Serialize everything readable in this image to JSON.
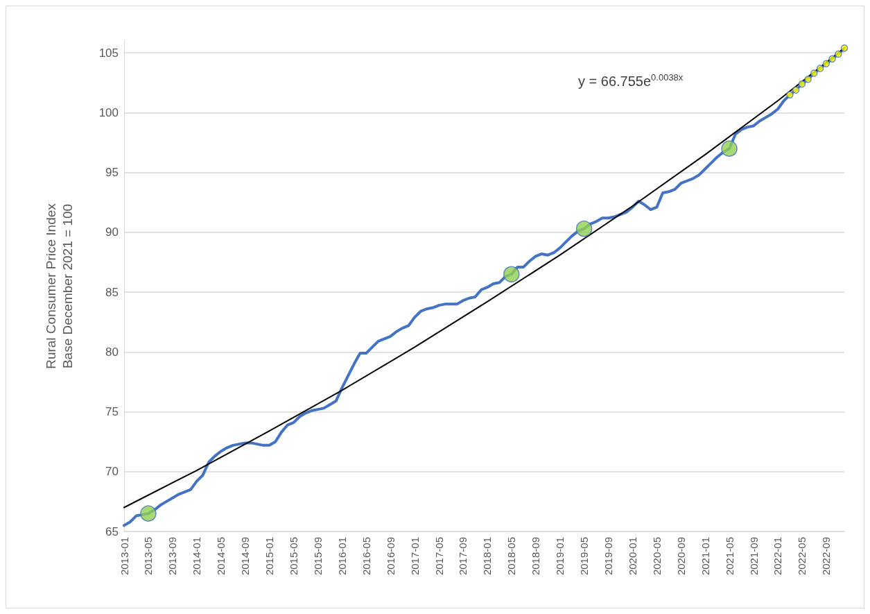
{
  "chart_data": {
    "type": "line",
    "ylabel": "Rural Consumer Price Index\nBase December 2021 = 100",
    "categories": [
      "2013-01",
      null,
      null,
      null,
      "2013-05",
      null,
      null,
      null,
      "2013-09",
      null,
      null,
      null,
      "2014-01",
      null,
      null,
      null,
      "2014-05",
      null,
      null,
      null,
      "2014-09",
      null,
      null,
      null,
      "2015-01",
      null,
      null,
      null,
      "2015-05",
      null,
      null,
      null,
      "2015-09",
      null,
      null,
      null,
      "2016-01",
      null,
      null,
      null,
      "2016-05",
      null,
      null,
      null,
      "2016-09",
      null,
      null,
      null,
      "2017-01",
      null,
      null,
      null,
      "2017-05",
      null,
      null,
      null,
      "2017-09",
      null,
      null,
      null,
      "2018-01",
      null,
      null,
      null,
      "2018-05",
      null,
      null,
      null,
      "2018-09",
      null,
      null,
      null,
      "2019-01",
      null,
      null,
      null,
      "2019-05",
      null,
      null,
      null,
      "2019-09",
      null,
      null,
      null,
      "2020-01",
      null,
      null,
      null,
      "2020-05",
      null,
      null,
      null,
      "2020-09",
      null,
      null,
      null,
      "2021-01",
      null,
      null,
      null,
      "2021-05",
      null,
      null,
      null,
      "2021-09",
      null,
      null,
      null,
      "2022-01",
      null,
      null,
      null,
      "2022-05",
      null,
      null,
      null,
      "2022-09",
      null,
      null,
      null
    ],
    "series": [
      {
        "color": "#4472c4",
        "marker": "none",
        "line_style": "solid",
        "values": [
          65.5,
          65.8,
          66.3,
          66.4,
          66.5,
          66.8,
          67.2,
          67.5,
          67.8,
          68.1,
          68.3,
          68.5,
          69.2,
          69.7,
          70.8,
          71.3,
          71.7,
          72.0,
          72.2,
          72.3,
          72.4,
          72.4,
          72.3,
          72.2,
          72.2,
          72.5,
          73.3,
          73.9,
          74.1,
          74.6,
          74.9,
          75.1,
          75.2,
          75.3,
          75.6,
          75.9,
          77.0,
          78.0,
          79.0,
          79.9,
          79.9,
          80.4,
          80.9,
          81.1,
          81.3,
          81.7,
          82.0,
          82.2,
          82.9,
          83.4,
          83.6,
          83.7,
          83.9,
          84.0,
          84.0,
          84.0,
          84.3,
          84.5,
          84.6,
          85.2,
          85.4,
          85.7,
          85.8,
          86.3,
          86.5,
          87.1,
          87.1,
          87.6,
          88.0,
          88.2,
          88.1,
          88.3,
          88.7,
          89.2,
          89.7,
          90.1,
          90.3,
          90.7,
          90.9,
          91.2,
          91.2,
          91.3,
          91.5,
          91.7,
          92.1,
          92.6,
          92.3,
          91.9,
          92.1,
          93.3,
          93.4,
          93.6,
          94.1,
          94.3,
          94.5,
          94.8,
          95.3,
          95.8,
          96.3,
          96.7,
          97.0,
          98.2,
          98.6,
          98.8,
          98.9,
          99.3,
          99.6,
          99.9,
          100.3,
          101.0,
          101.5,
          101.9,
          102.4,
          102.8,
          103.3,
          103.7,
          104.1,
          104.5,
          104.9,
          105.4
        ]
      },
      {
        "color": "#000000",
        "marker": "none",
        "line_style": "solid",
        "values": [
          67.0,
          null,
          null,
          null,
          null,
          null,
          null,
          null,
          null,
          null,
          null,
          null,
          70.1,
          null,
          null,
          null,
          null,
          null,
          null,
          null,
          null,
          null,
          null,
          null,
          73.4,
          null,
          null,
          null,
          null,
          null,
          null,
          null,
          null,
          null,
          null,
          null,
          76.8,
          null,
          null,
          null,
          null,
          null,
          null,
          null,
          null,
          null,
          null,
          null,
          80.4,
          null,
          null,
          null,
          null,
          null,
          null,
          null,
          null,
          null,
          null,
          null,
          84.2,
          null,
          null,
          null,
          null,
          null,
          null,
          null,
          null,
          null,
          null,
          null,
          88.1,
          null,
          null,
          null,
          null,
          null,
          null,
          null,
          null,
          null,
          null,
          null,
          92.2,
          null,
          null,
          null,
          null,
          null,
          null,
          null,
          null,
          null,
          null,
          null,
          96.5,
          null,
          null,
          null,
          null,
          null,
          null,
          null,
          null,
          null,
          null,
          null,
          101.0,
          null,
          null,
          null,
          null,
          null,
          null,
          null,
          null,
          null,
          null,
          105.4
        ]
      },
      {
        "type": "scatter",
        "color": "#92d050",
        "marker": "circle",
        "values": [
          null,
          null,
          null,
          null,
          66.5,
          null,
          null,
          null,
          null,
          null,
          null,
          null,
          null,
          null,
          null,
          null,
          null,
          null,
          null,
          null,
          null,
          null,
          null,
          null,
          null,
          null,
          null,
          null,
          null,
          null,
          null,
          null,
          null,
          null,
          null,
          null,
          null,
          null,
          null,
          null,
          null,
          null,
          null,
          null,
          null,
          null,
          null,
          null,
          null,
          null,
          null,
          null,
          null,
          null,
          null,
          null,
          null,
          null,
          null,
          null,
          null,
          null,
          null,
          null,
          86.5,
          null,
          null,
          null,
          null,
          null,
          null,
          null,
          null,
          null,
          null,
          null,
          90.3,
          null,
          null,
          null,
          null,
          null,
          null,
          null,
          null,
          null,
          null,
          null,
          null,
          null,
          null,
          null,
          null,
          null,
          null,
          null,
          null,
          null,
          null,
          null,
          97.0,
          null,
          null,
          null,
          null,
          null,
          null,
          null,
          null,
          null,
          null,
          null,
          null,
          null,
          null,
          null,
          null,
          null,
          null,
          null
        ]
      },
      {
        "type": "scatter",
        "color": "#ffff00",
        "marker": "circle",
        "values": [
          null,
          null,
          null,
          null,
          null,
          null,
          null,
          null,
          null,
          null,
          null,
          null,
          null,
          null,
          null,
          null,
          null,
          null,
          null,
          null,
          null,
          null,
          null,
          null,
          null,
          null,
          null,
          null,
          null,
          null,
          null,
          null,
          null,
          null,
          null,
          null,
          null,
          null,
          null,
          null,
          null,
          null,
          null,
          null,
          null,
          null,
          null,
          null,
          null,
          null,
          null,
          null,
          null,
          null,
          null,
          null,
          null,
          null,
          null,
          null,
          null,
          null,
          null,
          null,
          null,
          null,
          null,
          null,
          null,
          null,
          null,
          null,
          null,
          null,
          null,
          null,
          null,
          null,
          null,
          null,
          null,
          null,
          null,
          null,
          null,
          null,
          null,
          null,
          null,
          null,
          null,
          null,
          null,
          null,
          null,
          null,
          null,
          null,
          null,
          null,
          null,
          null,
          null,
          null,
          null,
          null,
          null,
          null,
          null,
          null,
          101.5,
          101.9,
          102.4,
          102.8,
          103.3,
          103.7,
          104.1,
          104.5,
          104.9,
          105.4
        ]
      }
    ],
    "annotations": [
      "y = 66.755e$^{0.0038x}$"
    ],
    "ylim": [
      65,
      106
    ],
    "yticks": [
      65,
      70,
      75,
      80,
      85,
      90,
      95,
      100,
      105
    ],
    "grid": "y"
  }
}
